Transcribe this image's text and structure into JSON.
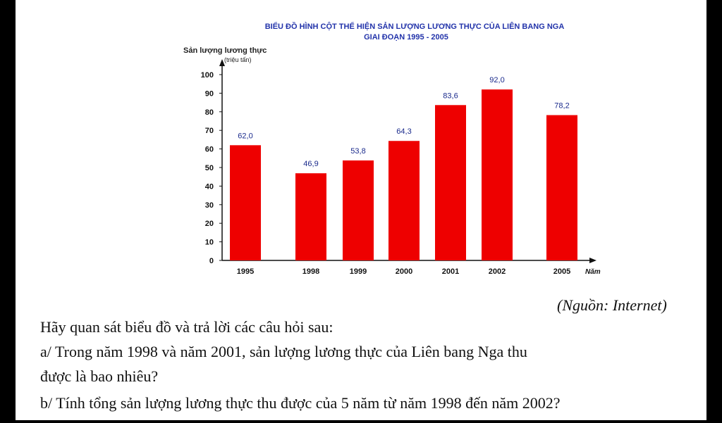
{
  "chart_data": {
    "type": "bar",
    "title_lines": [
      "BIỂU ĐỒ HÌNH CỘT THỂ HIỆN SẢN LƯỢNG LƯƠNG THỰC CỦA LIÊN BANG NGA",
      "GIAI ĐOẠN 1995 - 2005"
    ],
    "ylabel": "Sản lượng lương thực",
    "yunit": "(triệu tấn)",
    "xlabel": "Năm",
    "categories": [
      "1995",
      "1998",
      "1999",
      "2000",
      "2001",
      "2002",
      "2005"
    ],
    "values": [
      62.0,
      46.9,
      53.8,
      64.3,
      83.6,
      92.0,
      78.2
    ],
    "value_labels": [
      "62,0",
      "46,9",
      "53,8",
      "64,3",
      "83,6",
      "92,0",
      "78,2"
    ],
    "ylim": [
      0,
      100
    ],
    "yticks": [
      0,
      10,
      20,
      30,
      40,
      50,
      60,
      70,
      80,
      90,
      100
    ],
    "colors": {
      "bar": "#ee0000",
      "value_label": "#1a2a8c",
      "title": "#2233aa"
    }
  },
  "source": "(Nguồn: Internet)",
  "questions": {
    "intro": "Hãy quan sát biểu đồ và trả lời các câu hỏi sau:",
    "a_line1": "a/ Trong năm 1998 và năm 2001, sản lượng lương thực của Liên bang Nga thu",
    "a_line2": "được là bao nhiêu?",
    "b": "b/ Tính tổng sản lượng lương thực thu được của 5 năm từ năm 1998 đến năm 2002?"
  }
}
